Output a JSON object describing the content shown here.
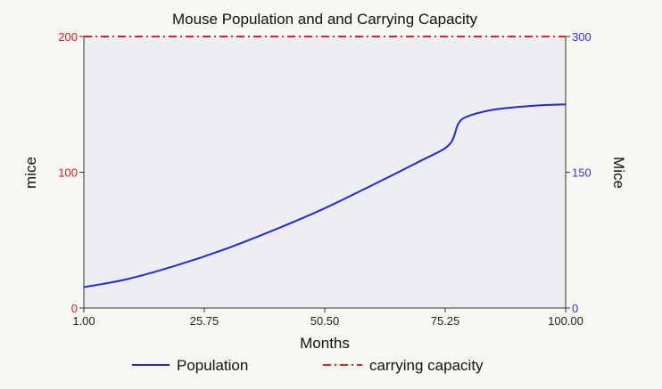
{
  "chart_data": {
    "type": "line",
    "title": "Mouse Population and and Carrying Capacity",
    "xlabel": "Months",
    "ylabel_left": "mice",
    "ylabel_right": "Mice",
    "x_ticks": [
      "1.00",
      "25.75",
      "50.50",
      "75.25",
      "100.00"
    ],
    "xlim": [
      1,
      100
    ],
    "left_axis": {
      "ticks": [
        "0",
        "100",
        "200"
      ],
      "ylim": [
        0,
        200
      ],
      "color": "#cc2222"
    },
    "right_axis": {
      "ticks": [
        "0",
        "150",
        "300"
      ],
      "ylim": [
        0,
        300
      ],
      "color": "#3333dd"
    },
    "series": [
      {
        "name": "Population",
        "axis": "right",
        "color": "#2525e0",
        "style": "solid",
        "x": [
          1,
          10,
          20,
          30,
          40,
          50,
          60,
          70,
          76,
          78,
          80,
          85,
          90,
          95,
          100
        ],
        "y": [
          23,
          32,
          47,
          65,
          86,
          109,
          135,
          162,
          180,
          204,
          212,
          219,
          222,
          224,
          225
        ]
      },
      {
        "name": "carrying capacity",
        "axis": "left",
        "color": "#dd2222",
        "style": "dashdot",
        "x": [
          1,
          100
        ],
        "y": [
          200,
          200
        ]
      }
    ],
    "plot_background": "#eceef2",
    "legend_position": "bottom",
    "grid": false
  }
}
